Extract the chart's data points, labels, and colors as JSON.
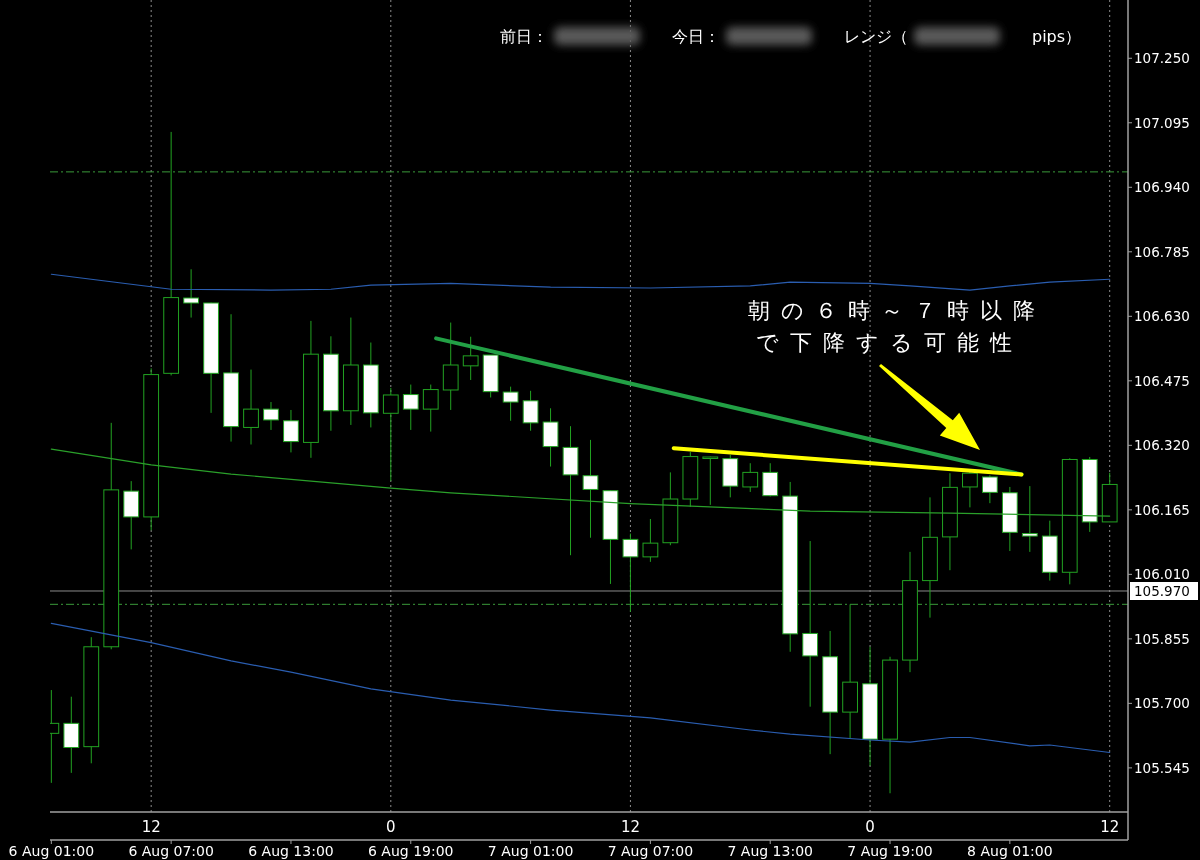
{
  "chart_data": {
    "type": "candlestick",
    "x": [
      "--08-06T07:00",
      "--08-06T08:00",
      "--08-06T09:00",
      "--08-06T10:00",
      "--08-06T11:00",
      "--08-06T12:00",
      "--08-06T13:00",
      "--08-06T14:00",
      "--08-06T15:00",
      "--08-06T16:00",
      "--08-06T17:00",
      "--08-06T18:00",
      "--08-06T19:00",
      "--08-06T20:00",
      "--08-06T21:00",
      "--08-06T22:00",
      "--08-06T23:00",
      "--08-07T00:00",
      "--08-07T01:00",
      "--08-07T02:00",
      "--08-07T03:00",
      "--08-07T04:00",
      "--08-07T05:00",
      "--08-07T06:00",
      "--08-07T07:00",
      "--08-07T08:00",
      "--08-07T09:00",
      "--08-07T10:00",
      "--08-07T11:00",
      "--08-07T12:00",
      "--08-07T13:00",
      "--08-07T14:00",
      "--08-07T15:00",
      "--08-07T16:00",
      "--08-07T17:00",
      "--08-07T18:00",
      "--08-07T19:00",
      "--08-07T20:00",
      "--08-07T21:00",
      "--08-07T22:00",
      "--08-07T23:00",
      "--08-08T00:00",
      "--08-08T01:00",
      "--08-08T02:00",
      "--08-08T03:00",
      "--08-08T04:00",
      "--08-08T05:00",
      "--08-08T06:00",
      "--08-08T07:00",
      "--08-08T08:00",
      "--08-08T09:00",
      "--08-08T10:00",
      "--08-08T11:00",
      "--08-08T12:00"
    ],
    "ohlc": [
      [
        105.628,
        105.732,
        105.509,
        105.652
      ],
      [
        105.652,
        105.716,
        105.533,
        105.594
      ],
      [
        105.596,
        105.859,
        105.556,
        105.836
      ],
      [
        105.836,
        106.374,
        105.83,
        106.213
      ],
      [
        106.21,
        106.234,
        106.07,
        106.148
      ],
      [
        106.148,
        106.505,
        106.116,
        106.49
      ],
      [
        106.493,
        107.073,
        106.488,
        106.675
      ],
      [
        106.674,
        106.743,
        106.627,
        106.662
      ],
      [
        106.662,
        106.663,
        106.398,
        106.493
      ],
      [
        106.494,
        106.635,
        106.329,
        106.365
      ],
      [
        106.363,
        106.502,
        106.322,
        106.407
      ],
      [
        106.407,
        106.424,
        106.357,
        106.381
      ],
      [
        106.379,
        106.405,
        106.303,
        106.329
      ],
      [
        106.327,
        106.619,
        106.29,
        106.539
      ],
      [
        106.539,
        106.582,
        106.355,
        106.403
      ],
      [
        106.403,
        106.627,
        106.369,
        106.513
      ],
      [
        106.513,
        106.567,
        106.363,
        106.398
      ],
      [
        106.397,
        106.458,
        106.234,
        106.441
      ],
      [
        106.442,
        106.466,
        106.357,
        106.407
      ],
      [
        106.407,
        106.466,
        106.353,
        106.454
      ],
      [
        106.453,
        106.615,
        106.405,
        106.513
      ],
      [
        106.511,
        106.581,
        106.477,
        106.535
      ],
      [
        106.537,
        106.537,
        106.435,
        106.449
      ],
      [
        106.448,
        106.461,
        106.379,
        106.424
      ],
      [
        106.427,
        106.451,
        106.355,
        106.374
      ],
      [
        106.376,
        106.409,
        106.269,
        106.317
      ],
      [
        106.315,
        106.366,
        106.056,
        106.249
      ],
      [
        106.247,
        106.333,
        106.098,
        106.214
      ],
      [
        106.211,
        106.212,
        105.987,
        106.094
      ],
      [
        106.094,
        106.108,
        105.92,
        106.052
      ],
      [
        106.052,
        106.143,
        106.04,
        106.085
      ],
      [
        106.086,
        106.255,
        106.08,
        106.191
      ],
      [
        106.191,
        106.304,
        106.172,
        106.293
      ],
      [
        106.289,
        106.293,
        106.177,
        106.292
      ],
      [
        106.288,
        106.297,
        106.195,
        106.222
      ],
      [
        106.22,
        106.277,
        106.208,
        106.255
      ],
      [
        106.255,
        106.277,
        106.197,
        106.199
      ],
      [
        106.198,
        106.232,
        105.824,
        105.867
      ],
      [
        105.868,
        106.09,
        105.692,
        105.814
      ],
      [
        105.812,
        105.874,
        105.578,
        105.679
      ],
      [
        105.679,
        105.938,
        105.616,
        105.751
      ],
      [
        105.747,
        105.836,
        105.55,
        105.614
      ],
      [
        105.614,
        105.812,
        105.484,
        105.804
      ],
      [
        105.804,
        106.064,
        105.775,
        105.995
      ],
      [
        105.995,
        106.195,
        105.906,
        106.099
      ],
      [
        106.1,
        106.253,
        106.02,
        106.219
      ],
      [
        106.22,
        106.256,
        106.171,
        106.253
      ],
      [
        106.244,
        106.248,
        106.181,
        106.207
      ],
      [
        106.206,
        106.22,
        106.066,
        106.111
      ],
      [
        106.108,
        106.222,
        106.064,
        106.102
      ],
      [
        106.102,
        106.139,
        105.995,
        106.015
      ],
      [
        106.015,
        106.289,
        105.986,
        106.286
      ],
      [
        106.286,
        106.292,
        106.112,
        106.136
      ],
      [
        106.136,
        106.254,
        106.136,
        106.226
      ]
    ],
    "color": "#22a322",
    "colors": [
      "#000000",
      "#ffffff",
      "#000000",
      "#000000",
      "#ffffff",
      "#000000",
      "#000000",
      "#ffffff",
      "#ffffff",
      "#ffffff",
      "#000000",
      "#ffffff",
      "#ffffff",
      "#000000",
      "#ffffff",
      "#000000",
      "#ffffff",
      "#000000",
      "#ffffff",
      "#000000",
      "#000000",
      "#000000",
      "#ffffff",
      "#ffffff",
      "#ffffff",
      "#ffffff",
      "#ffffff",
      "#ffffff",
      "#ffffff",
      "#ffffff",
      "#000000",
      "#000000",
      "#000000",
      "#000000",
      "#ffffff",
      "#000000",
      "#ffffff",
      "#ffffff",
      "#ffffff",
      "#ffffff",
      "#000000",
      "#ffffff",
      "#000000",
      "#000000",
      "#000000",
      "#000000",
      "#000000",
      "#ffffff",
      "#ffffff",
      "#ffffff",
      "#ffffff",
      "#000000",
      "#ffffff",
      "#000000"
    ],
    "series": [
      {
        "type": "line",
        "color": "#2a5db0",
        "x": [
          "--08-06T07:00",
          "--08-06T10:00",
          "--08-06T13:00",
          "--08-06T18:00",
          "--08-06T21:00",
          "--08-06T23:00",
          "--08-07T03:00",
          "--08-07T08:00",
          "--08-07T13:00",
          "--08-07T18:00",
          "--08-07T20:00",
          "--08-08T00:00",
          "--08-08T02:00",
          "--08-08T05:00",
          "--08-08T07:00",
          "--08-08T09:00",
          "--08-08T12:00"
        ],
        "values": [
          106.731,
          106.713,
          106.695,
          106.693,
          106.695,
          106.705,
          106.709,
          106.7,
          106.698,
          106.703,
          106.712,
          106.709,
          106.703,
          106.693,
          106.703,
          106.712,
          106.719
        ]
      },
      {
        "type": "line",
        "color": "#2aa02a",
        "x": [
          "--08-06T07:00",
          "--08-06T12:00",
          "--08-06T16:00",
          "--08-07T00:00",
          "--08-07T03:00",
          "--08-07T12:00",
          "--08-07T21:00",
          "--08-08T04:00",
          "--08-08T12:00"
        ],
        "values": [
          106.311,
          106.273,
          106.251,
          106.217,
          106.206,
          106.18,
          106.162,
          106.157,
          106.15
        ]
      },
      {
        "type": "line",
        "color": "#2a5db0",
        "x": [
          "--08-06T07:00",
          "--08-06T12:00",
          "--08-06T16:00",
          "--08-06T19:00",
          "--08-06T23:00",
          "--08-07T03:00",
          "--08-07T08:00",
          "--08-07T13:00",
          "--08-07T18:00",
          "--08-07T20:00",
          "--08-08T00:00",
          "--08-08T02:00",
          "--08-08T04:00",
          "--08-08T05:00",
          "--08-08T08:00",
          "--08-08T09:00",
          "--08-08T12:00"
        ],
        "values": [
          105.892,
          105.846,
          105.802,
          105.775,
          105.735,
          105.708,
          105.684,
          105.665,
          105.636,
          105.626,
          105.612,
          105.607,
          105.618,
          105.618,
          105.598,
          105.6,
          105.582
        ]
      },
      {
        "type": "line",
        "color": "#22a045",
        "x": [
          "--08-07T02:16",
          "--08-08T07:35"
        ],
        "values": [
          106.577,
          106.25
        ]
      },
      {
        "type": "line",
        "color": "#ffff00",
        "x": [
          "--08-07T14:10",
          "--08-08T07:35"
        ],
        "values": [
          106.313,
          106.25
        ]
      }
    ],
    "xlim": [
      "--08-06T06:56",
      "--08-08T12:55"
    ],
    "xticks": [
      {
        "value": "--08-06T12:00",
        "label": "12"
      },
      {
        "value": "--08-07T00:00",
        "label": "0"
      },
      {
        "value": "--08-07T12:00",
        "label": "12"
      },
      {
        "value": "--08-08T00:00",
        "label": "0"
      },
      {
        "value": "--08-08T12:00",
        "label": "12"
      }
    ],
    "x2lim": [
      "--08-06T00:56",
      "--08-08T06:55"
    ],
    "x2ticks": [
      {
        "value": "--08-06T01:00",
        "label": "6 Aug 01:00"
      },
      {
        "value": "--08-06T07:00",
        "label": "6 Aug 07:00"
      },
      {
        "value": "--08-06T13:00",
        "label": "6 Aug 13:00"
      },
      {
        "value": "--08-06T19:00",
        "label": "6 Aug 19:00"
      },
      {
        "value": "--08-07T01:00",
        "label": "7 Aug 01:00"
      },
      {
        "value": "--08-07T07:00",
        "label": "7 Aug 07:00"
      },
      {
        "value": "--08-07T13:00",
        "label": "7 Aug 13:00"
      },
      {
        "value": "--08-07T19:00",
        "label": "7 Aug 19:00"
      },
      {
        "value": "--08-08T01:00",
        "label": "8 Aug 01:00"
      }
    ],
    "ylim": [
      105.439,
      107.39
    ],
    "yticks": [
      105.545,
      {
        "value": 105.7,
        "label": "105.700"
      },
      105.855,
      {
        "value": 106.01,
        "label": "106.010"
      },
      106.165,
      {
        "value": 106.32,
        "label": "106.320"
      },
      106.475,
      {
        "value": 106.63,
        "label": "106.630"
      },
      106.785,
      {
        "value": 106.94,
        "label": "106.940"
      },
      107.095,
      {
        "value": 107.25,
        "label": "107.250"
      }
    ],
    "grid": "x",
    "ref_lines": [
      {
        "axis": "y",
        "value": 106.977,
        "color": "#3a9a3a",
        "line_style": "dashed"
      },
      {
        "axis": "y",
        "value": 105.938,
        "color": "#3a9a3a",
        "line_style": "dashed"
      },
      {
        "axis": "y",
        "value": 105.97,
        "label": "105.970",
        "color": "#8a8a8a",
        "line_style": "solid"
      }
    ],
    "annotations": [
      "前日：",
      "今日：",
      "レンジ（",
      "pips）",
      "朝の６時～７時以降で下降する可能性"
    ]
  }
}
